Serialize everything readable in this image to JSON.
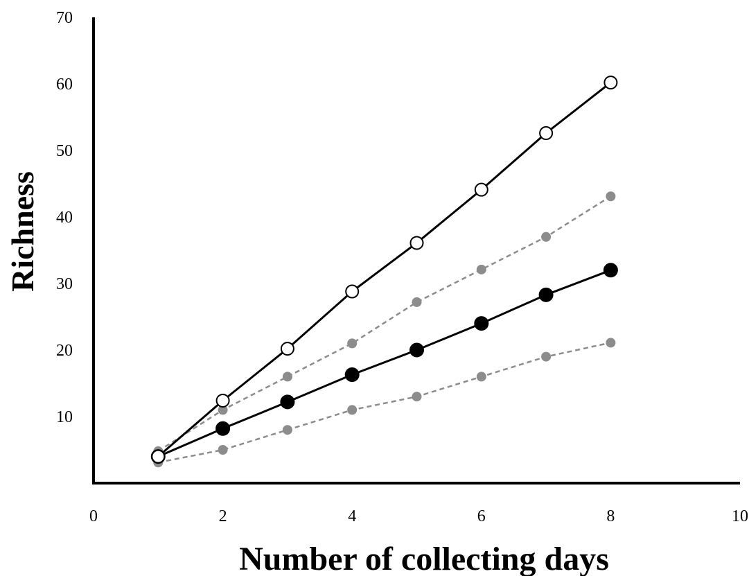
{
  "chart_data": {
    "type": "line",
    "title": "",
    "xlabel": "Number of collecting days",
    "ylabel": "Richness",
    "xlim": [
      0,
      10
    ],
    "ylim": [
      0,
      70
    ],
    "xticks": [
      0,
      2,
      4,
      6,
      8,
      10
    ],
    "yticks": [
      10,
      20,
      30,
      40,
      50,
      60,
      70
    ],
    "grid": false,
    "legend": "none",
    "series": [
      {
        "style": "black solid line, open circles",
        "color": "#000000",
        "x": [
          1,
          2,
          3,
          4,
          5,
          6,
          7,
          8
        ],
        "values": [
          4,
          12.4,
          20.2,
          28.8,
          36.1,
          44.1,
          52.6,
          60.2
        ]
      },
      {
        "style": "grey dashed line, small grey filled circles",
        "color": "#8c8c8c",
        "x": [
          1,
          2,
          3,
          4,
          5,
          6,
          7,
          8
        ],
        "values": [
          4.8,
          11,
          16,
          21,
          27.2,
          32.1,
          37,
          43.1
        ]
      },
      {
        "style": "black solid line, large black filled circles",
        "color": "#000000",
        "x": [
          1,
          2,
          3,
          4,
          5,
          6,
          7,
          8
        ],
        "values": [
          4,
          8.2,
          12.2,
          16.3,
          20,
          24,
          28.3,
          32
        ]
      },
      {
        "style": "grey dashed line, small grey filled circles",
        "color": "#8c8c8c",
        "x": [
          1,
          2,
          3,
          4,
          5,
          6,
          7,
          8
        ],
        "values": [
          3.1,
          5,
          8,
          11,
          13,
          16,
          19,
          21.1
        ]
      }
    ]
  }
}
